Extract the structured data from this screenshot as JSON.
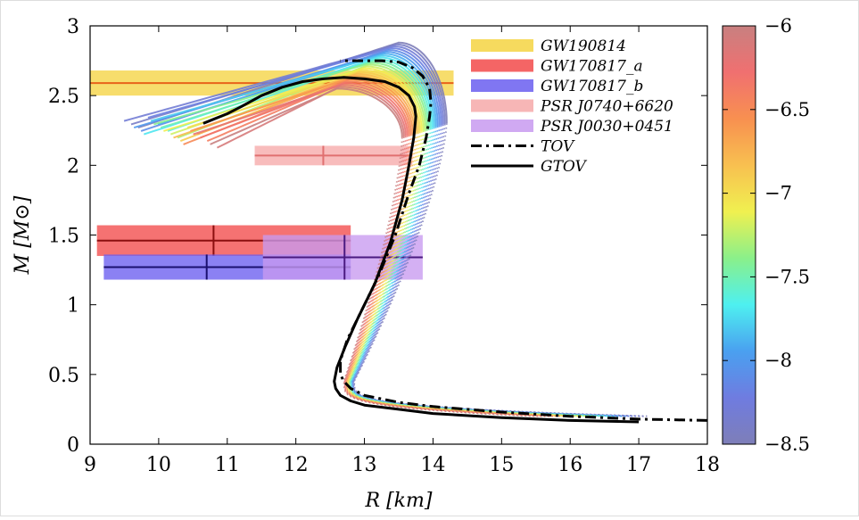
{
  "chart_data": {
    "type": "line",
    "xlabel": "R [km]",
    "ylabel": "M [M⊙]",
    "xlim": [
      9,
      18
    ],
    "ylim": [
      0,
      3
    ],
    "x_ticks": [
      9,
      10,
      11,
      12,
      13,
      14,
      15,
      16,
      17,
      18
    ],
    "y_ticks": [
      0,
      0.5,
      1,
      1.5,
      2,
      2.5,
      3
    ],
    "x_tick_labels": [
      "9",
      "10",
      "11",
      "12",
      "13",
      "14",
      "15",
      "16",
      "17",
      "18"
    ],
    "y_tick_labels": [
      "0",
      "0.5",
      "1",
      "1.5",
      "2",
      "2.5",
      "3"
    ],
    "legend_position": "top-right",
    "legend": [
      {
        "label": "GW190814",
        "style": "band",
        "color": "#f5d442"
      },
      {
        "label": "GW170817_a",
        "style": "band",
        "color": "#f24a4a"
      },
      {
        "label": "GW170817_b",
        "style": "band",
        "color": "#6a5ef0"
      },
      {
        "label": "PSR J0740+6620",
        "style": "band",
        "color": "#f6a9a9"
      },
      {
        "label": "PSR J0030+0451",
        "style": "band",
        "color": "#c89af0"
      },
      {
        "label": "TOV",
        "style": "dashdot",
        "color": "#000000"
      },
      {
        "label": "GTOV",
        "style": "solid",
        "color": "#000000"
      }
    ],
    "constraints": [
      {
        "name": "GW190814",
        "mass": 2.59,
        "mass_err": 0.09,
        "r_min": 9.0,
        "r_max": 14.3,
        "color": "#f5d442",
        "line_color": "#e8621a"
      },
      {
        "name": "GW170817_a",
        "mass": 1.46,
        "mass_err": 0.11,
        "radius": 10.8,
        "r_min": 9.1,
        "r_max": 12.8,
        "color": "#f24a4a",
        "line_color": "#8b0f0f"
      },
      {
        "name": "GW170817_b",
        "mass": 1.27,
        "mass_err": 0.09,
        "radius": 10.7,
        "r_min": 9.2,
        "r_max": 12.8,
        "color": "#6a5ef0",
        "line_color": "#1a1070"
      },
      {
        "name": "PSR J0740+6620",
        "mass": 2.07,
        "mass_err": 0.07,
        "radius": 12.4,
        "r_min": 11.4,
        "r_max": 13.7,
        "color": "#f6a9a9",
        "line_color": "#e07070"
      },
      {
        "name": "PSR J0030+0451",
        "mass": 1.34,
        "mass_err": 0.16,
        "radius": 12.71,
        "r_min": 11.52,
        "r_max": 13.85,
        "color": "#c89af0",
        "line_color": "#4a1a80"
      }
    ],
    "series": [
      {
        "name": "TOV",
        "style": "dashdot",
        "color": "#000000",
        "x": [
          18.0,
          17.0,
          16.0,
          15.0,
          14.5,
          14.0,
          13.5,
          13.0,
          12.8,
          12.7,
          12.65,
          12.65,
          12.75,
          12.95,
          13.2,
          13.45,
          13.65,
          13.8,
          13.9,
          13.95,
          13.97,
          13.95,
          13.85,
          13.7,
          13.5,
          13.25,
          13.0,
          12.8,
          12.65
        ],
        "y": [
          0.17,
          0.18,
          0.2,
          0.23,
          0.25,
          0.27,
          0.3,
          0.35,
          0.4,
          0.45,
          0.5,
          0.6,
          0.75,
          0.95,
          1.2,
          1.5,
          1.8,
          2.0,
          2.2,
          2.35,
          2.45,
          2.55,
          2.64,
          2.7,
          2.74,
          2.75,
          2.75,
          2.75,
          2.75
        ]
      },
      {
        "name": "GTOV",
        "style": "solid",
        "color": "#000000",
        "x": [
          17.0,
          16.0,
          15.0,
          14.0,
          13.5,
          13.0,
          12.8,
          12.65,
          12.58,
          12.56,
          12.6,
          12.72,
          12.9,
          13.15,
          13.38,
          13.55,
          13.65,
          13.72,
          13.75,
          13.73,
          13.65,
          13.5,
          13.3,
          13.0,
          12.7,
          12.4,
          12.1,
          11.8,
          11.5,
          11.2,
          11.0,
          10.8,
          10.65
        ],
        "y": [
          0.16,
          0.17,
          0.19,
          0.22,
          0.25,
          0.28,
          0.31,
          0.35,
          0.4,
          0.45,
          0.55,
          0.7,
          0.9,
          1.15,
          1.45,
          1.75,
          2.0,
          2.2,
          2.35,
          2.42,
          2.5,
          2.56,
          2.6,
          2.62,
          2.63,
          2.62,
          2.6,
          2.56,
          2.5,
          2.42,
          2.37,
          2.33,
          2.3
        ]
      }
    ],
    "colorbar": {
      "min": -8.5,
      "max": -6,
      "ticks": [
        -6,
        -6.5,
        -7,
        -7.5,
        -8,
        -8.5
      ],
      "tick_labels": [
        "−6",
        "−6.5",
        "−7",
        "−7.5",
        "−8",
        "−8.5"
      ],
      "colors": [
        "#7e7eb8",
        "#6f7ce0",
        "#4aa0f0",
        "#4ef0f0",
        "#8af08a",
        "#f0f050",
        "#f8c050",
        "#f89050",
        "#f07070",
        "#c88080"
      ]
    },
    "family_curves": {
      "count": 26,
      "param_range": [
        -8.5,
        -6
      ]
    }
  }
}
